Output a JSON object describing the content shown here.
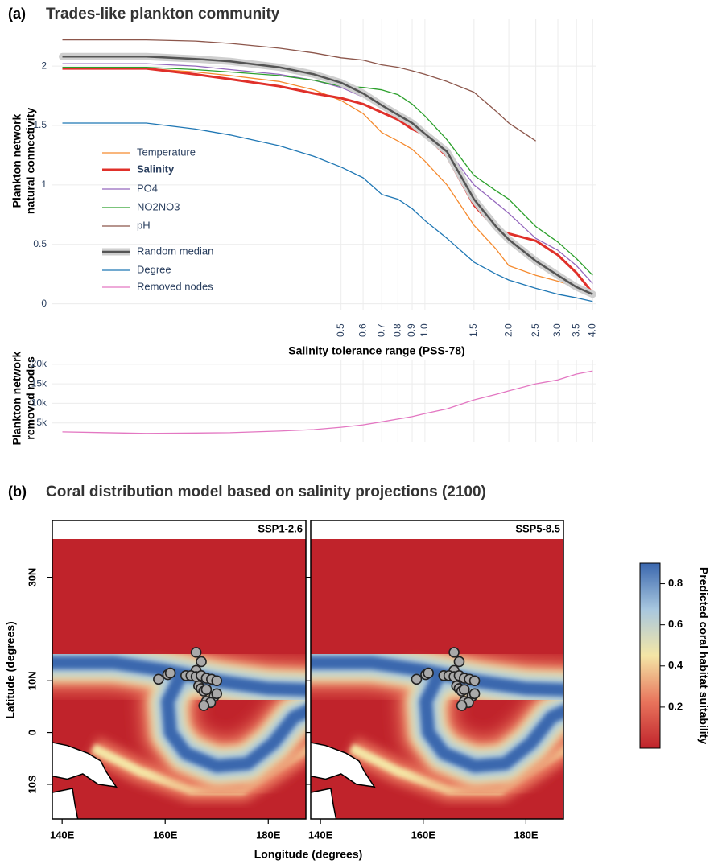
{
  "panels": [
    {
      "label": "(a)",
      "title": "Trades-like plankton community"
    },
    {
      "label": "(b)",
      "title": "Coral distribution model based on salinity projections (2100)"
    }
  ],
  "maps": {
    "xlabel": "Longitude (degrees)",
    "ylabel": "Latitude (degrees)"
  },
  "colorbar": {
    "title": "Predicted coral habitat suitability",
    "lim": [
      0,
      0.9
    ],
    "ticks": [
      0.2,
      0.4,
      0.6,
      0.8
    ],
    "colors": [
      "#c0232b",
      "#e8745c",
      "#f4e6a6",
      "#a8c7df",
      "#3a67ae"
    ]
  },
  "chart_data": [
    {
      "type": "line",
      "xlabel": "Salinity tolerance range (PSS-78)",
      "ylabel": [
        "Plankton network",
        "natural connectivity"
      ],
      "log_x": true,
      "grid": true,
      "legend": "left",
      "x": [
        0.05,
        0.1,
        0.15,
        0.2,
        0.3,
        0.4,
        0.5,
        0.6,
        0.7,
        0.8,
        0.9,
        1.0,
        1.2,
        1.5,
        1.8,
        2.0,
        2.5,
        3.0,
        3.5,
        4.0
      ],
      "xlim": [
        0.046,
        4.1
      ],
      "xticks": [
        0.5,
        0.6,
        0.7,
        0.8,
        0.9,
        {
          "value": 1,
          "label": "1.0"
        },
        1.5,
        {
          "value": 2,
          "label": "2.0"
        },
        2.5,
        {
          "value": 3,
          "label": "3.0"
        },
        3.5,
        {
          "value": 4,
          "label": "4.0"
        }
      ],
      "ylim": [
        -0.05,
        2.4
      ],
      "yticks": [
        0,
        0.5,
        1,
        1.5,
        2
      ],
      "series": [
        {
          "name": "Temperature",
          "color": "#f58a2e",
          "line_width": 1.3,
          "values": [
            1.98,
            1.98,
            1.95,
            1.92,
            1.87,
            1.8,
            1.71,
            1.6,
            1.44,
            1.37,
            1.3,
            1.2,
            1.0,
            0.66,
            0.46,
            0.32,
            0.24,
            0.19,
            0.14,
            0.08
          ]
        },
        {
          "name": "Salinity",
          "color": "#e0302a",
          "line_width": 3,
          "emphasis": true,
          "values": [
            1.98,
            1.98,
            1.93,
            1.89,
            1.83,
            1.77,
            1.73,
            1.68,
            1.61,
            1.55,
            1.47,
            1.42,
            1.24,
            0.83,
            0.63,
            0.59,
            0.53,
            0.41,
            0.26,
            0.09
          ]
        },
        {
          "name": "PO4",
          "color": "#9467bd",
          "line_width": 1.3,
          "values": [
            2.02,
            2.02,
            2.0,
            1.97,
            1.93,
            1.88,
            1.82,
            1.74,
            1.66,
            1.6,
            1.53,
            1.44,
            1.3,
            1.0,
            0.85,
            0.76,
            0.55,
            0.45,
            0.32,
            0.17
          ]
        },
        {
          "name": "NO2NO3",
          "color": "#2ca02c",
          "line_width": 1.3,
          "values": [
            1.99,
            1.99,
            1.97,
            1.95,
            1.92,
            1.88,
            1.83,
            1.82,
            1.8,
            1.76,
            1.68,
            1.58,
            1.38,
            1.08,
            0.95,
            0.88,
            0.65,
            0.52,
            0.38,
            0.24
          ]
        },
        {
          "name": "pH",
          "color": "#8c564b",
          "line_width": 1.3,
          "values": [
            2.22,
            2.22,
            2.21,
            2.19,
            2.15,
            2.11,
            2.07,
            2.05,
            2.01,
            1.99,
            1.96,
            1.93,
            1.87,
            1.78,
            1.62,
            1.52,
            1.37,
            null,
            null,
            null
          ]
        },
        {
          "name": "Random median",
          "color": "#555555",
          "halo_color": "#cfcfcf",
          "line_width": 2.5,
          "values": [
            2.08,
            2.08,
            2.06,
            2.04,
            1.99,
            1.93,
            1.86,
            1.77,
            1.67,
            1.59,
            1.52,
            1.43,
            1.28,
            0.88,
            0.65,
            0.54,
            0.36,
            0.24,
            0.14,
            0.08
          ]
        },
        {
          "name": "Degree",
          "color": "#1f77b4",
          "line_width": 1.3,
          "values": [
            1.52,
            1.52,
            1.47,
            1.42,
            1.33,
            1.24,
            1.15,
            1.06,
            0.92,
            0.88,
            0.8,
            0.7,
            0.55,
            0.35,
            0.25,
            0.2,
            0.13,
            0.08,
            0.05,
            0.02
          ]
        }
      ]
    },
    {
      "type": "line",
      "ylabel": [
        "Plankton network",
        "removed nodes"
      ],
      "log_x": true,
      "grid": true,
      "x": [
        0.05,
        0.1,
        0.15,
        0.2,
        0.3,
        0.4,
        0.5,
        0.6,
        0.7,
        0.8,
        0.9,
        1.0,
        1.2,
        1.5,
        1.8,
        2.0,
        2.5,
        3.0,
        3.5,
        4.0
      ],
      "xlim": [
        0.046,
        4.1
      ],
      "ylim": [
        0,
        21000
      ],
      "yticks": [
        {
          "value": 5000,
          "label": "5k"
        },
        {
          "value": 10000,
          "label": "10k"
        },
        {
          "value": 15000,
          "label": "15k"
        },
        {
          "value": 20000,
          "label": "20k"
        }
      ],
      "series": [
        {
          "name": "Removed nodes",
          "color": "#e377c2",
          "line_width": 1.3,
          "values": [
            2700,
            2300,
            2400,
            2500,
            2900,
            3300,
            3900,
            4500,
            5300,
            6000,
            6600,
            7400,
            8600,
            10900,
            12300,
            13200,
            15000,
            16000,
            17500,
            18300
          ]
        }
      ]
    },
    {
      "type": "map",
      "title": "SSP1-2.6",
      "xlim": [
        138.1,
        187.3
      ],
      "ylim": [
        -16.7,
        37.4
      ],
      "xticks": [
        {
          "value": 140,
          "label": "140E"
        },
        {
          "value": 160,
          "label": "160E"
        },
        {
          "value": 180,
          "label": "180E"
        }
      ],
      "yticks": [
        {
          "value": -10,
          "label": "10S"
        },
        0,
        {
          "value": 10,
          "label": "10N"
        },
        {
          "value": 30,
          "label": "30N"
        }
      ],
      "point_color": "#a9a9a9",
      "lon": [
        166,
        167,
        166,
        160.5,
        161,
        164,
        165,
        166,
        167,
        168,
        169,
        170,
        166.5,
        167,
        167.5,
        168,
        169.5,
        170,
        168,
        168.8,
        167.5,
        158.7
      ],
      "lat": [
        15.5,
        13.7,
        12,
        11.2,
        11.5,
        11,
        11,
        10.8,
        11,
        10.5,
        10.3,
        10,
        9,
        8.5,
        8,
        8.3,
        7,
        7.5,
        6,
        5.8,
        5.2,
        10.3
      ]
    },
    {
      "type": "map",
      "title": "SSP5-8.5",
      "xlim": [
        138.1,
        187.3
      ],
      "ylim": [
        -16.7,
        37.4
      ],
      "xticks": [
        {
          "value": 140,
          "label": "140E"
        },
        {
          "value": 160,
          "label": "160E"
        },
        {
          "value": 180,
          "label": "180E"
        }
      ],
      "yticks": [
        {
          "value": -10,
          "label": "10S"
        },
        0,
        {
          "value": 10,
          "label": "10N"
        },
        {
          "value": 30,
          "label": "30N"
        }
      ],
      "point_color": "#a9a9a9",
      "lon": [
        166,
        167,
        166,
        160.5,
        161,
        164,
        165,
        166,
        167,
        168,
        169,
        170,
        166.5,
        167,
        167.5,
        168,
        169.5,
        170,
        168,
        168.8,
        167.5,
        158.7
      ],
      "lat": [
        15.5,
        13.7,
        12,
        11.2,
        11.5,
        11,
        11,
        10.8,
        11,
        10.5,
        10.3,
        10,
        9,
        8.5,
        8,
        8.3,
        7,
        7.5,
        6,
        5.8,
        5.2,
        10.3
      ]
    }
  ]
}
